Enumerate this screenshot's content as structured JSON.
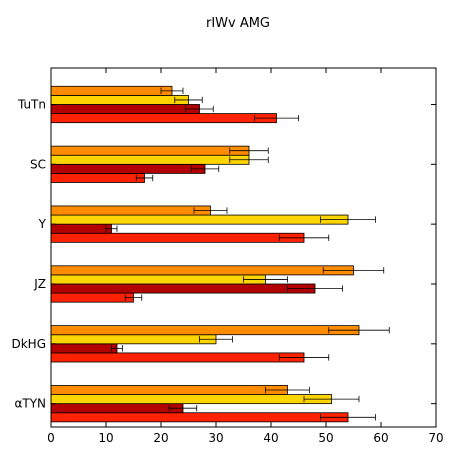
{
  "chart_data": {
    "type": "bar",
    "orientation": "horizontal",
    "title": "rIWv  AMG",
    "categories": [
      "αTYN",
      "DkHG",
      "JZ",
      "Y",
      "SC",
      "TuTn"
    ],
    "series": [
      {
        "color": "#ff2200",
        "values": [
          54,
          46,
          15,
          46,
          17,
          41
        ],
        "errors": [
          5,
          4.5,
          1.5,
          4.5,
          1.5,
          4
        ]
      },
      {
        "color": "#b30000",
        "values": [
          24,
          12,
          48,
          11,
          28,
          27
        ],
        "errors": [
          2.5,
          1,
          5,
          1,
          2.5,
          2.5
        ]
      },
      {
        "color": "#ffd500",
        "values": [
          51,
          30,
          39,
          54,
          36,
          25
        ],
        "errors": [
          5,
          3,
          4,
          5,
          3.5,
          2.5
        ]
      },
      {
        "color": "#ff8c00",
        "values": [
          43,
          56,
          55,
          29,
          36,
          22
        ],
        "errors": [
          4,
          5.5,
          5.5,
          3,
          3.5,
          2
        ]
      }
    ],
    "xlim": [
      0,
      70
    ],
    "xticks": [
      "0",
      "10",
      "20",
      "30",
      "40",
      "50",
      "60",
      "70"
    ],
    "grid": false,
    "legend": false
  }
}
